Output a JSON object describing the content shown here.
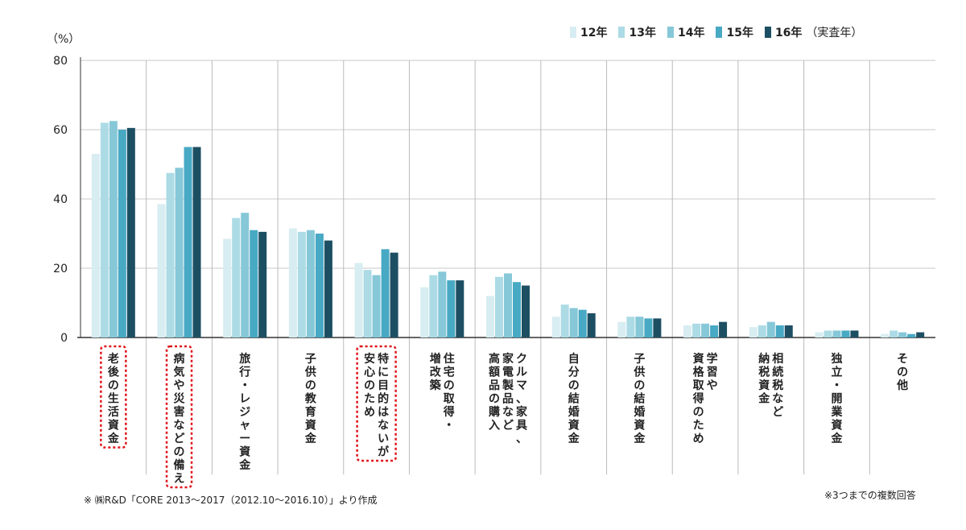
{
  "unit_label": "（%）",
  "source_note": "※ ㈱R&D「CORE 2013～2017（2012.10～2016.10）」より作成",
  "multi_answer_note": "※3つまでの複数回答",
  "colors": {
    "series": [
      "#d8edf2",
      "#acdbe5",
      "#86c8d8",
      "#48a9c4",
      "#1d4f63"
    ],
    "highlight_border": "#e0141a",
    "grid": "#c9c9c9"
  },
  "chart_data": {
    "type": "bar",
    "ylim": [
      0,
      80
    ],
    "yticks": [
      0,
      20,
      40,
      60,
      80
    ],
    "grid": true,
    "legend_position": "top-right",
    "legend_suffix": "（実査年）",
    "categories": [
      "老後の生活資金",
      "病気や災害などの備え",
      "旅行・レジャー資金",
      "子供の教育資金",
      "特に目的はないが安心のため",
      "住宅の取得・増改築",
      "クルマ、家具、家電製品など高額品の購入",
      "自分の結婚資金",
      "子供の結婚資金",
      "学習や資格取得のため",
      "相続税など納税資金",
      "独立・開業資金",
      "その他"
    ],
    "label_lines": [
      [
        "老後の生活資金"
      ],
      [
        "病気や災害などの備え"
      ],
      [
        "旅行・レジャー資金"
      ],
      [
        "子供の教育資金"
      ],
      [
        "特に目的はないが",
        "安心のため"
      ],
      [
        "住宅の取得・",
        "増改築"
      ],
      [
        "クルマ、家具、",
        "家電製品など",
        "高額品の購入"
      ],
      [
        "自分の結婚資金"
      ],
      [
        "子供の結婚資金"
      ],
      [
        "学習や",
        "資格取得のため"
      ],
      [
        "相続税など",
        "納税資金"
      ],
      [
        "独立・開業資金"
      ],
      [
        "その他"
      ]
    ],
    "highlighted": [
      0,
      1,
      4
    ],
    "series": [
      {
        "name": "12年",
        "values": [
          53,
          38.5,
          28.5,
          31.5,
          21.5,
          14.5,
          12,
          6,
          4.5,
          3.5,
          3,
          1.5,
          1
        ]
      },
      {
        "name": "13年",
        "values": [
          62,
          47.5,
          34.5,
          30.5,
          19.5,
          18,
          17.5,
          9.5,
          6,
          4,
          3.5,
          2,
          2
        ]
      },
      {
        "name": "14年",
        "values": [
          62.5,
          49,
          36,
          31,
          18,
          19,
          18.5,
          8.5,
          6,
          4,
          4.5,
          2,
          1.5
        ]
      },
      {
        "name": "15年",
        "values": [
          60,
          55,
          31,
          30,
          25.5,
          16.5,
          16,
          8,
          5.5,
          3.5,
          3.5,
          2,
          1
        ]
      },
      {
        "name": "16年",
        "values": [
          60.5,
          55,
          30.5,
          28,
          24.5,
          16.5,
          15,
          7,
          5.5,
          4.5,
          3.5,
          2,
          1.5
        ]
      }
    ]
  }
}
